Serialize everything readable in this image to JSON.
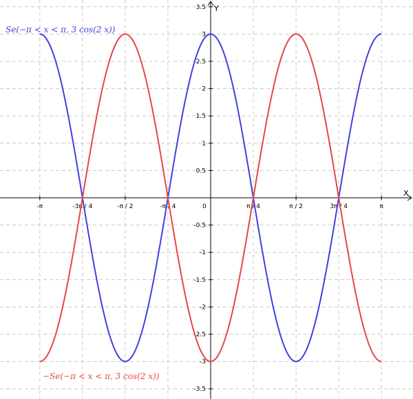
{
  "chart_data": {
    "type": "line",
    "xlabel": "X",
    "ylabel": "Y",
    "xlim": [
      -3.5,
      4.63
    ],
    "ylim": [
      -3.7,
      3.65
    ],
    "grid": true,
    "x_tick_values": [
      -3.14159,
      -2.35619,
      -1.5708,
      -0.785398,
      0,
      0.785398,
      1.5708,
      2.35619,
      3.14159
    ],
    "x_tick_labels": [
      "-π",
      "-3π / 4",
      "-π / 2",
      "-π / 4",
      "0",
      "π / 4",
      "π / 2",
      "3π / 4",
      "π"
    ],
    "y_tick_values": [
      -3.5,
      -3,
      -2.5,
      -2,
      -1.5,
      -1,
      -0.5,
      0.5,
      1,
      1.5,
      2,
      2.5,
      3,
      3.5
    ],
    "y_tick_labels": [
      "-3.5",
      "-3",
      "-2.5",
      "-2",
      "-1.5",
      "-1",
      "-0.5",
      "0.5",
      "1",
      "1.5",
      "2",
      "2.5",
      "3",
      "3.5"
    ],
    "series": [
      {
        "name": "Se(−π < x < π, 3 cos(2 x))",
        "color": "#3f3fe0",
        "expression": "3*cos(2*x)",
        "domain": [
          -3.14159,
          3.14159
        ],
        "x": [
          -3.14159,
          -2.35619,
          -1.5708,
          -0.785398,
          0,
          0.785398,
          1.5708,
          2.35619,
          3.14159
        ],
        "y": [
          3,
          0,
          -3,
          0,
          3,
          0,
          -3,
          0,
          3
        ]
      },
      {
        "name": "−Se(−π < x < π, 3 cos(2 x))",
        "color": "#e64545",
        "expression": "-3*cos(2*x)",
        "domain": [
          -3.14159,
          3.14159
        ],
        "x": [
          -3.14159,
          -2.35619,
          -1.5708,
          -0.785398,
          0,
          0.785398,
          1.5708,
          2.35619,
          3.14159
        ],
        "y": [
          -3,
          0,
          3,
          0,
          -3,
          0,
          3,
          0,
          -3
        ]
      }
    ]
  }
}
